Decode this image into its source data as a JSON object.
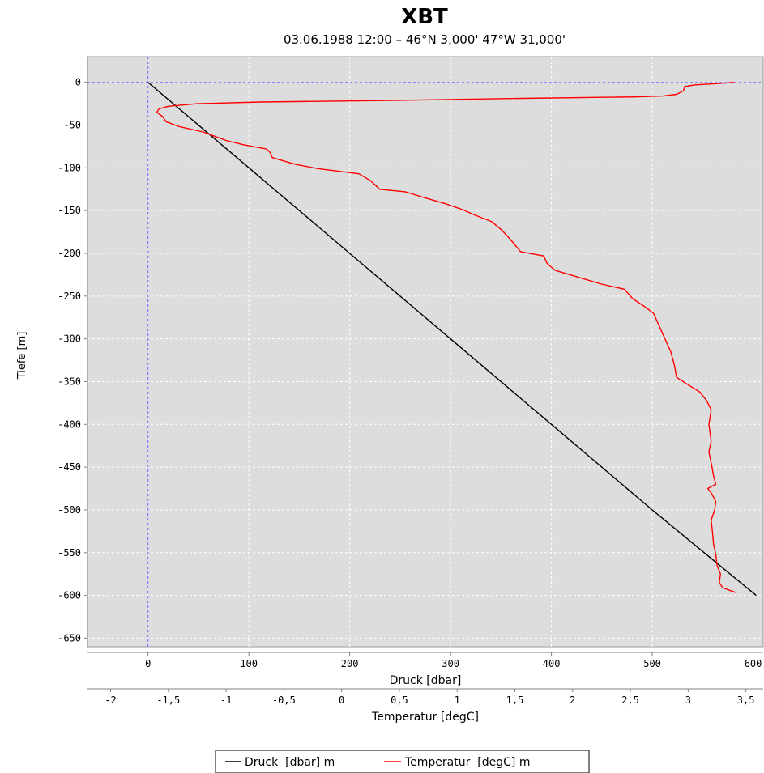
{
  "chart_data": {
    "type": "line",
    "title": "XBT",
    "subtitle": "03.06.1988 12:00 – 46°N 3,000' 47°W 31,000'",
    "ylabel": "Tiefe [m]",
    "ylim": [
      -660,
      30
    ],
    "yticks": [
      "0",
      "-50",
      "-100",
      "-150",
      "-200",
      "-250",
      "-300",
      "-350",
      "-400",
      "-450",
      "-500",
      "-550",
      "-600",
      "-650"
    ],
    "xaxes": [
      {
        "label": "Druck  [dbar]",
        "xlim": [
          -60,
          610
        ],
        "ticks": [
          "0",
          "100",
          "200",
          "300",
          "400",
          "500",
          "600"
        ]
      },
      {
        "label": "Temperatur  [degC]",
        "xlim": [
          -2.2,
          3.65
        ],
        "ticks": [
          "-2",
          "-1,5",
          "-1",
          "-0,5",
          "0",
          "0,5",
          "1",
          "1,5",
          "2",
          "2,5",
          "3",
          "3,5"
        ]
      }
    ],
    "grid": true,
    "legend_position": "bottom",
    "series": [
      {
        "name": "Druck  [dbar] m",
        "color": "#000000",
        "axis": 0,
        "points": [
          [
            0,
            0
          ],
          [
            100,
            -100
          ],
          [
            200,
            -200
          ],
          [
            300,
            -300
          ],
          [
            400,
            -400
          ],
          [
            500,
            -500
          ],
          [
            603,
            -600
          ]
        ]
      },
      {
        "name": "Temperatur  [degC] m",
        "color": "#ff0000",
        "axis": 1,
        "points": [
          [
            3.4,
            0
          ],
          [
            3.3,
            -1
          ],
          [
            3.05,
            -3
          ],
          [
            2.97,
            -5
          ],
          [
            2.96,
            -10
          ],
          [
            2.9,
            -14
          ],
          [
            2.78,
            -16
          ],
          [
            2.55,
            -17
          ],
          [
            1.4,
            -19
          ],
          [
            0.5,
            -21
          ],
          [
            -0.7,
            -23
          ],
          [
            -1.25,
            -25
          ],
          [
            -1.5,
            -28
          ],
          [
            -1.58,
            -31
          ],
          [
            -1.6,
            -35
          ],
          [
            -1.55,
            -40
          ],
          [
            -1.52,
            -46
          ],
          [
            -1.4,
            -52
          ],
          [
            -1.2,
            -58
          ],
          [
            -1.1,
            -63
          ],
          [
            -1.0,
            -68
          ],
          [
            -0.85,
            -73
          ],
          [
            -0.65,
            -78
          ],
          [
            -0.62,
            -82
          ],
          [
            -0.6,
            -88
          ],
          [
            -0.55,
            -90
          ],
          [
            -0.4,
            -96
          ],
          [
            -0.2,
            -101
          ],
          [
            0.15,
            -107
          ],
          [
            0.25,
            -115
          ],
          [
            0.33,
            -125
          ],
          [
            0.55,
            -128
          ],
          [
            0.72,
            -135
          ],
          [
            0.9,
            -142
          ],
          [
            1.05,
            -149
          ],
          [
            1.15,
            -155
          ],
          [
            1.3,
            -163
          ],
          [
            1.38,
            -172
          ],
          [
            1.45,
            -182
          ],
          [
            1.5,
            -190
          ],
          [
            1.55,
            -198
          ],
          [
            1.75,
            -203
          ],
          [
            1.78,
            -212
          ],
          [
            1.85,
            -220
          ],
          [
            2.05,
            -228
          ],
          [
            2.25,
            -236
          ],
          [
            2.45,
            -242
          ],
          [
            2.52,
            -253
          ],
          [
            2.62,
            -262
          ],
          [
            2.7,
            -270
          ],
          [
            2.75,
            -285
          ],
          [
            2.8,
            -300
          ],
          [
            2.85,
            -315
          ],
          [
            2.88,
            -330
          ],
          [
            2.9,
            -345
          ],
          [
            2.98,
            -352
          ],
          [
            3.1,
            -362
          ],
          [
            3.16,
            -372
          ],
          [
            3.2,
            -383
          ],
          [
            3.18,
            -400
          ],
          [
            3.2,
            -420
          ],
          [
            3.18,
            -432
          ],
          [
            3.2,
            -445
          ],
          [
            3.22,
            -460
          ],
          [
            3.24,
            -470
          ],
          [
            3.17,
            -475
          ],
          [
            3.2,
            -480
          ],
          [
            3.24,
            -490
          ],
          [
            3.23,
            -500
          ],
          [
            3.2,
            -512
          ],
          [
            3.21,
            -525
          ],
          [
            3.22,
            -540
          ],
          [
            3.24,
            -552
          ],
          [
            3.25,
            -565
          ],
          [
            3.28,
            -575
          ],
          [
            3.27,
            -585
          ],
          [
            3.3,
            -591
          ],
          [
            3.36,
            -594
          ],
          [
            3.42,
            -597
          ]
        ]
      }
    ]
  }
}
